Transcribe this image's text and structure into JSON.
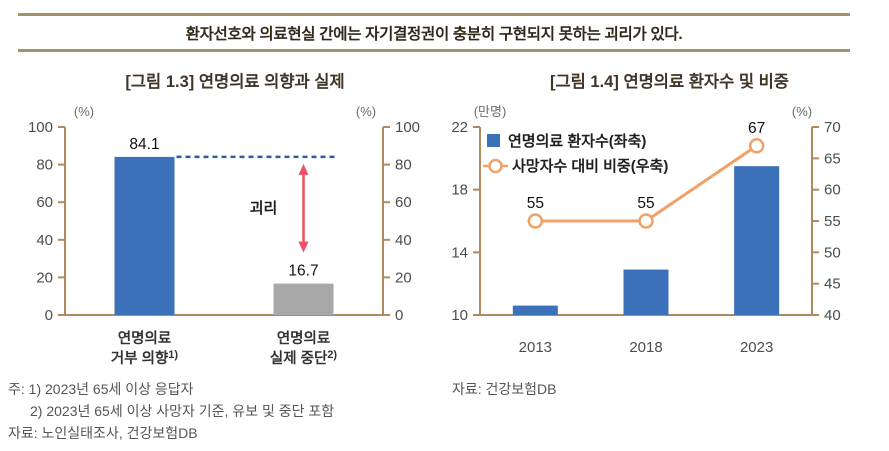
{
  "header": {
    "title": "환자선호와 의료현실 간에는 자기결정권이 충분히 구현되지 못하는 괴리가 있다."
  },
  "figures": {
    "left": {
      "title": "[그림 1.3] 연명의료 의향과 실제",
      "note1": "주: 1) 2023년 65세 이상 응답자",
      "note2": "2) 2023년 65세 이상 사망자 기준, 유보 및 중단 포함",
      "note3": "자료: 노인실태조사, 건강보험DB"
    },
    "right": {
      "title": "[그림 1.4] 연명의료 환자수 및 비중",
      "source": "자료: 건강보험DB"
    }
  },
  "colors": {
    "rule": "#a5916f",
    "axis": "#ae8a5f",
    "tick_text": "#4d4d4d",
    "bar_blue": "#3b71b8",
    "bar_gray": "#a8a8a8",
    "line_orange": "#f0a168",
    "dashed_blue": "#2e5f9d",
    "arrow_red": "#ef5063"
  },
  "chart_data": [
    {
      "type": "bar",
      "title": "[그림 1.3] 연명의료 의향과 실제",
      "unit_left": "(%)",
      "unit_right": "(%)",
      "categories": [
        {
          "line1": "연명의료",
          "line2": "거부 의향",
          "sup": "1)"
        },
        {
          "line1": "연명의료",
          "line2": "실제 중단",
          "sup": "2)"
        }
      ],
      "values": [
        84.1,
        16.7
      ],
      "value_labels": [
        "84.1",
        "16.7"
      ],
      "bar_colors": [
        "#3b71b8",
        "#a8a8a8"
      ],
      "ylim": [
        0,
        100
      ],
      "yticks": [
        0,
        20,
        40,
        60,
        80,
        100
      ],
      "grid": false,
      "annotations": {
        "dashed_line_at": 84.1,
        "gap_label": "괴리",
        "gap_arrow_between": [
          84.1,
          16.7
        ]
      }
    },
    {
      "type": "bar+line",
      "title": "[그림 1.4] 연명의료 환자수 및 비중",
      "unit_left": "(만명)",
      "unit_right": "(%)",
      "categories": [
        "2013",
        "2018",
        "2023"
      ],
      "series": [
        {
          "name": "연명의료 환자수(좌축)",
          "type": "bar",
          "axis": "left",
          "values": [
            10.6,
            12.9,
            19.5
          ],
          "color": "#3b71b8"
        },
        {
          "name": "사망자수 대비 비중(우축)",
          "type": "line",
          "axis": "right",
          "values": [
            55,
            55,
            67
          ],
          "labels": [
            "55",
            "55",
            "67"
          ],
          "color": "#f0a168",
          "marker": "open-circle"
        }
      ],
      "ylim_left": [
        10,
        22
      ],
      "yticks_left": [
        10,
        14,
        18,
        22
      ],
      "ylim_right": [
        40,
        70
      ],
      "yticks_right": [
        40,
        45,
        50,
        55,
        60,
        65,
        70
      ],
      "legend_position": "top-left-inside",
      "grid": false
    }
  ]
}
